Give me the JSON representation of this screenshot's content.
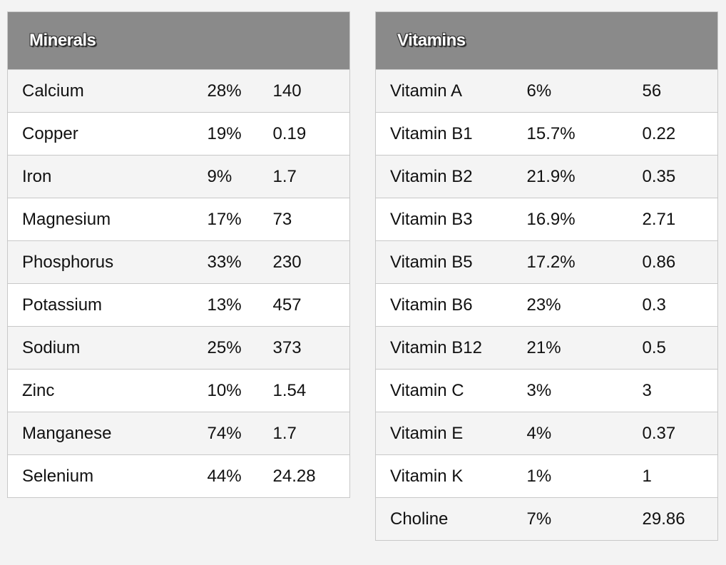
{
  "minerals": {
    "title": "Minerals",
    "rows": [
      {
        "name": "Calcium",
        "percent": "28%",
        "amount": "140"
      },
      {
        "name": "Copper",
        "percent": "19%",
        "amount": "0.19"
      },
      {
        "name": "Iron",
        "percent": "9%",
        "amount": "1.7"
      },
      {
        "name": "Magnesium",
        "percent": "17%",
        "amount": "73"
      },
      {
        "name": "Phosphorus",
        "percent": "33%",
        "amount": "230"
      },
      {
        "name": "Potassium",
        "percent": "13%",
        "amount": "457"
      },
      {
        "name": "Sodium",
        "percent": "25%",
        "amount": "373"
      },
      {
        "name": "Zinc",
        "percent": "10%",
        "amount": "1.54"
      },
      {
        "name": "Manganese",
        "percent": "74%",
        "amount": "1.7"
      },
      {
        "name": "Selenium",
        "percent": "44%",
        "amount": "24.28"
      }
    ]
  },
  "vitamins": {
    "title": "Vitamins",
    "rows": [
      {
        "name": "Vitamin A",
        "percent": "6%",
        "amount": "56"
      },
      {
        "name": "Vitamin B1",
        "percent": "15.7%",
        "amount": "0.22"
      },
      {
        "name": "Vitamin B2",
        "percent": "21.9%",
        "amount": "0.35"
      },
      {
        "name": "Vitamin B3",
        "percent": "16.9%",
        "amount": "2.71"
      },
      {
        "name": "Vitamin B5",
        "percent": "17.2%",
        "amount": "0.86"
      },
      {
        "name": "Vitamin B6",
        "percent": "23%",
        "amount": "0.3"
      },
      {
        "name": "Vitamin B12",
        "percent": "21%",
        "amount": "0.5"
      },
      {
        "name": "Vitamin C",
        "percent": "3%",
        "amount": "3"
      },
      {
        "name": "Vitamin E",
        "percent": "4%",
        "amount": "0.37"
      },
      {
        "name": "Vitamin K",
        "percent": "1%",
        "amount": "1"
      },
      {
        "name": "Choline",
        "percent": "7%",
        "amount": "29.86"
      }
    ]
  }
}
